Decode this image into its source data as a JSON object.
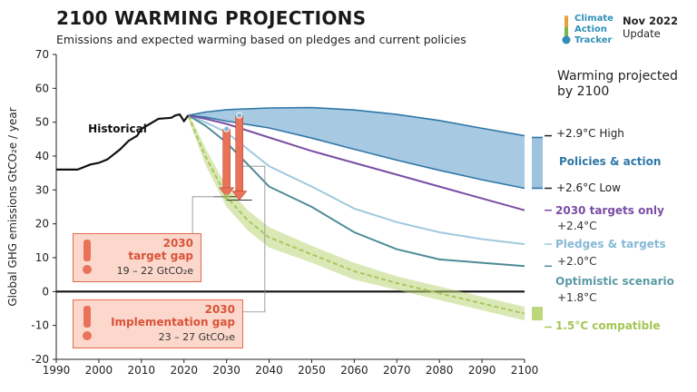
{
  "header": {
    "title": "2100 WARMING PROJECTIONS",
    "subtitle": "Emissions and expected warming based on pledges and current policies",
    "logo_line1": "Climate",
    "logo_line2": "Action",
    "logo_line3": "Tracker",
    "date": "Nov 2022",
    "update": "Update",
    "warming_header_line1": "Warming projected",
    "warming_header_line2": "by 2100"
  },
  "labels": {
    "historical": "Historical",
    "high": "+2.9°C High",
    "low": "+2.6°C Low",
    "policies": "Policies & action",
    "targets_2030": "2030 targets only",
    "targets_2030_temp": "+2.4°C",
    "pledges": "Pledges & targets",
    "pledges_temp": "+2.0°C",
    "optimistic": "Optimistic scenario",
    "optimistic_temp": "+1.8°C",
    "compatible": "1.5°C compatible"
  },
  "gaps": {
    "target": {
      "year": "2030",
      "name": "target gap",
      "range": "19 – 22  GtCO₂e"
    },
    "implementation": {
      "year": "2030",
      "name": "Implementation gap",
      "range": "23 – 27  GtCO₂e"
    }
  },
  "colors": {
    "historical": "#111111",
    "policies": "#2f77a8",
    "policies_fill": "#9dc3de",
    "targets_2030": "#7a4ea3",
    "pledges": "#9fc9de",
    "optimistic": "#4d8b97",
    "compatible": "#bcd67a",
    "compatible_line": "#a7c85c",
    "gap": "#e8735a"
  },
  "chart_data": {
    "type": "line",
    "title": "2100 WARMING PROJECTIONS",
    "xlabel": "",
    "ylabel": "Global GHG emissions  GtCO₂e / year",
    "xlim": [
      1990,
      2100
    ],
    "ylim": [
      -20,
      70
    ],
    "xticks": [
      1990,
      2000,
      2010,
      2020,
      2030,
      2040,
      2050,
      2060,
      2070,
      2080,
      2090,
      2100
    ],
    "yticks": [
      -20,
      -10,
      0,
      10,
      20,
      30,
      40,
      50,
      60,
      70
    ],
    "grid": false,
    "series": [
      {
        "name": "Historical",
        "x": [
          1990,
          1995,
          1998,
          2000,
          2002,
          2005,
          2007,
          2009,
          2010,
          2012,
          2014,
          2016,
          2017,
          2018,
          2019,
          2020,
          2021
        ],
        "y": [
          36,
          36,
          37.5,
          38,
          39,
          42,
          44.5,
          46,
          48,
          49.5,
          51,
          51.2,
          51.3,
          52,
          52.3,
          50.3,
          52
        ]
      },
      {
        "name": "Policies & action high",
        "x": [
          2021,
          2025,
          2030,
          2040,
          2050,
          2060,
          2070,
          2080,
          2090,
          2100
        ],
        "y": [
          52,
          53,
          53.7,
          54.2,
          54.3,
          53.6,
          52.3,
          50.5,
          48.2,
          46
        ]
      },
      {
        "name": "Policies & action low",
        "x": [
          2021,
          2025,
          2030,
          2040,
          2050,
          2060,
          2070,
          2080,
          2090,
          2100
        ],
        "y": [
          52,
          51.5,
          50.3,
          48.3,
          45.3,
          42,
          38.8,
          35.8,
          33,
          30.5
        ]
      },
      {
        "name": "2030 targets only",
        "x": [
          2021,
          2025,
          2030,
          2040,
          2050,
          2060,
          2070,
          2080,
          2090,
          2100
        ],
        "y": [
          52,
          51,
          49.5,
          45.5,
          41.5,
          38,
          34.5,
          31,
          27.5,
          24
        ]
      },
      {
        "name": "Pledges & targets",
        "x": [
          2021,
          2025,
          2030,
          2035,
          2040,
          2050,
          2060,
          2070,
          2080,
          2090,
          2100
        ],
        "y": [
          52,
          50,
          47,
          42,
          37,
          31,
          24.5,
          20.5,
          17.5,
          15.5,
          14
        ]
      },
      {
        "name": "Optimistic scenario",
        "x": [
          2021,
          2025,
          2030,
          2035,
          2040,
          2050,
          2060,
          2070,
          2080,
          2090,
          2100
        ],
        "y": [
          52,
          49,
          44,
          37.5,
          31,
          25,
          17.5,
          12.5,
          9.5,
          8.5,
          7.5
        ]
      },
      {
        "name": "1.5°C compatible",
        "x": [
          2021,
          2025,
          2030,
          2035,
          2040,
          2050,
          2060,
          2070,
          2080,
          2090,
          2100
        ],
        "y": [
          52,
          40,
          28,
          21,
          16,
          11,
          6,
          2.5,
          -0.5,
          -3.5,
          -6.5
        ]
      }
    ],
    "ranges": [
      {
        "name": "1.5°C compatible band",
        "x": [
          2021,
          2025,
          2030,
          2035,
          2040,
          2050,
          2060,
          2070,
          2080,
          2090,
          2100
        ],
        "upper": [
          53,
          42.5,
          31,
          24,
          19,
          13.5,
          8.5,
          4.5,
          1.5,
          -1.5,
          -4.5
        ],
        "lower": [
          51,
          37.5,
          25,
          18,
          13,
          8.5,
          3.5,
          0.5,
          -2.5,
          -5.5,
          -8.5
        ]
      }
    ],
    "target_gap": {
      "year": 2030,
      "from": 48,
      "to": 28,
      "label": "19 – 22  GtCO₂e"
    },
    "implementation_gap": {
      "year": 2033,
      "from": 52,
      "to": 27,
      "label": "23 – 27  GtCO₂e"
    }
  }
}
